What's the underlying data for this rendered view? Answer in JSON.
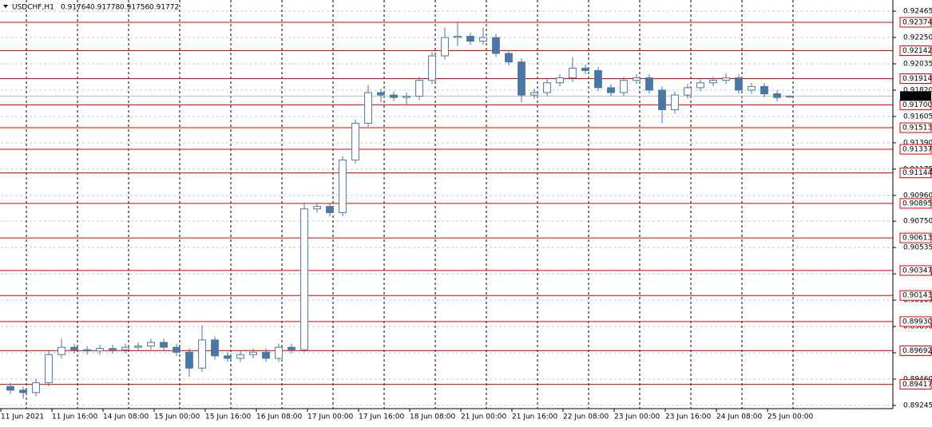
{
  "chart_data": {
    "type": "candlestick",
    "symbol": "USDCHF,H1",
    "ohlc": [
      0.91764,
      0.91778,
      0.91756,
      0.91772
    ],
    "x": [
      3,
      7,
      11,
      15,
      19,
      23,
      27,
      31,
      35,
      39,
      43,
      47,
      51,
      55,
      59,
      63,
      67,
      71,
      75,
      79,
      83,
      87,
      91,
      95,
      99,
      103,
      107,
      111,
      115,
      119,
      123,
      127,
      131,
      135,
      139,
      143,
      147,
      151,
      155,
      159,
      163,
      167,
      171,
      175,
      179,
      183,
      187,
      191,
      195,
      199,
      203,
      207,
      211,
      215,
      219,
      223,
      227,
      231,
      235,
      239,
      243,
      247
    ],
    "open": [
      0.894,
      0.8937,
      0.8935,
      0.8943,
      0.8966,
      0.8972,
      0.897,
      0.8969,
      0.8971,
      0.897,
      0.8972,
      0.8973,
      0.8976,
      0.8972,
      0.8968,
      0.8955,
      0.8978,
      0.8965,
      0.8963,
      0.8966,
      0.8968,
      0.8963,
      0.8972,
      0.897,
      0.9085,
      0.9087,
      0.9082,
      0.9125,
      0.9155,
      0.918,
      0.9178,
      0.9176,
      0.9177,
      0.919,
      0.921,
      0.9225,
      0.9226,
      0.9222,
      0.9225,
      0.9212,
      0.9205,
      0.9178,
      0.918,
      0.9188,
      0.9192,
      0.92,
      0.9198,
      0.9184,
      0.918,
      0.919,
      0.9192,
      0.9182,
      0.9166,
      0.9178,
      0.9184,
      0.9188,
      0.919,
      0.9192,
      0.9182,
      0.9185,
      0.9179,
      0.91764
    ],
    "high": [
      0.8943,
      0.894,
      0.8946,
      0.8969,
      0.8979,
      0.8975,
      0.8973,
      0.8974,
      0.8974,
      0.8975,
      0.8976,
      0.8979,
      0.8979,
      0.8975,
      0.8971,
      0.899,
      0.8981,
      0.8968,
      0.8969,
      0.8971,
      0.8971,
      0.8975,
      0.8975,
      0.909,
      0.909,
      0.909,
      0.9128,
      0.9158,
      0.9186,
      0.9183,
      0.9181,
      0.918,
      0.9193,
      0.9213,
      0.9233,
      0.9238,
      0.9229,
      0.9233,
      0.9228,
      0.9215,
      0.9208,
      0.9183,
      0.9191,
      0.9195,
      0.9209,
      0.9203,
      0.9201,
      0.9187,
      0.9193,
      0.9195,
      0.9195,
      0.9185,
      0.9181,
      0.9187,
      0.9191,
      0.9193,
      0.9196,
      0.9195,
      0.9188,
      0.9188,
      0.9182,
      0.91778
    ],
    "low": [
      0.8934,
      0.893,
      0.8932,
      0.894,
      0.8963,
      0.8967,
      0.8966,
      0.8966,
      0.8967,
      0.8967,
      0.8969,
      0.897,
      0.8969,
      0.8965,
      0.8948,
      0.8952,
      0.8962,
      0.896,
      0.896,
      0.8963,
      0.896,
      0.896,
      0.8967,
      0.8968,
      0.9082,
      0.9079,
      0.9079,
      0.9122,
      0.9152,
      0.9172,
      0.9173,
      0.917,
      0.9174,
      0.9187,
      0.9207,
      0.9218,
      0.9219,
      0.9219,
      0.9209,
      0.9202,
      0.9172,
      0.9175,
      0.9177,
      0.9185,
      0.9189,
      0.9195,
      0.9181,
      0.9177,
      0.9177,
      0.9187,
      0.9179,
      0.9155,
      0.9163,
      0.9175,
      0.9181,
      0.9185,
      0.9187,
      0.9179,
      0.9179,
      0.9176,
      0.9173,
      0.91756
    ],
    "close": [
      0.8937,
      0.8935,
      0.8943,
      0.8966,
      0.8972,
      0.897,
      0.8969,
      0.8971,
      0.897,
      0.8972,
      0.8973,
      0.8976,
      0.8972,
      0.8968,
      0.8955,
      0.8978,
      0.8965,
      0.8963,
      0.8966,
      0.8968,
      0.8963,
      0.8972,
      0.897,
      0.9085,
      0.9087,
      0.9082,
      0.9125,
      0.9155,
      0.918,
      0.9178,
      0.9176,
      0.9177,
      0.919,
      0.921,
      0.9225,
      0.9226,
      0.9222,
      0.9225,
      0.9212,
      0.9205,
      0.9178,
      0.918,
      0.9188,
      0.9192,
      0.92,
      0.9198,
      0.9184,
      0.918,
      0.919,
      0.9192,
      0.9182,
      0.9166,
      0.9178,
      0.9184,
      0.9188,
      0.919,
      0.9192,
      0.9182,
      0.9185,
      0.9179,
      0.9176,
      0.91772
    ],
    "color": "#4a77a3",
    "xlim": [
      0,
      279.25
    ],
    "xticks": [
      {
        "value": 0,
        "label": "11 Jun 2021"
      },
      {
        "value": 16,
        "label": "11 Jun 16:00"
      },
      {
        "value": 32,
        "label": "14 Jun 08:00"
      },
      {
        "value": 48,
        "label": "15 Jun 00:00"
      },
      {
        "value": 64,
        "label": "15 Jun 16:00"
      },
      {
        "value": 80,
        "label": "16 Jun 08:00"
      },
      {
        "value": 96,
        "label": "17 Jun 00:00"
      },
      {
        "value": 112,
        "label": "17 Jun 16:00"
      },
      {
        "value": 128,
        "label": "18 Jun 08:00"
      },
      {
        "value": 144,
        "label": "21 Jun 00:00"
      },
      {
        "value": 160,
        "label": "21 Jun 16:00"
      },
      {
        "value": 176,
        "label": "22 Jun 08:00"
      },
      {
        "value": 192,
        "label": "23 Jun 00:00"
      },
      {
        "value": 208,
        "label": "23 Jun 16:00"
      },
      {
        "value": 224,
        "label": "24 Jun 08:00"
      },
      {
        "value": 240,
        "label": "25 Jun 00:00"
      }
    ],
    "ylim": [
      0.89245,
      0.92465
    ],
    "yticks": [
      0.92465,
      {
        "value": 0.9225,
        "label": "0.92250"
      },
      0.92035,
      {
        "value": 0.9182,
        "label": "0.91820"
      },
      0.91605,
      {
        "value": 0.9139,
        "label": "0.91390"
      },
      0.91175,
      {
        "value": 0.9096,
        "label": "0.90960"
      },
      {
        "value": 0.9075,
        "label": "0.90750"
      },
      0.90535,
      {
        "value": 0.9032,
        "label": "0.90320"
      },
      0.90105,
      {
        "value": 0.8989,
        "label": "0.89890"
      },
      0.89675,
      {
        "value": 0.8946,
        "label": "0.89460"
      },
      0.89245
    ],
    "grid": true,
    "levels": [
      0.92374,
      0.92142,
      0.91914,
      {
        "value": 0.917,
        "label": "0.91700"
      },
      0.91513,
      0.91337,
      0.91144,
      0.90895,
      0.90613,
      0.90347,
      0.90143,
      {
        "value": 0.8993,
        "label": "0.89930"
      },
      0.89692,
      0.89417
    ],
    "level_color": "#e00000",
    "current": 0.91772
  }
}
